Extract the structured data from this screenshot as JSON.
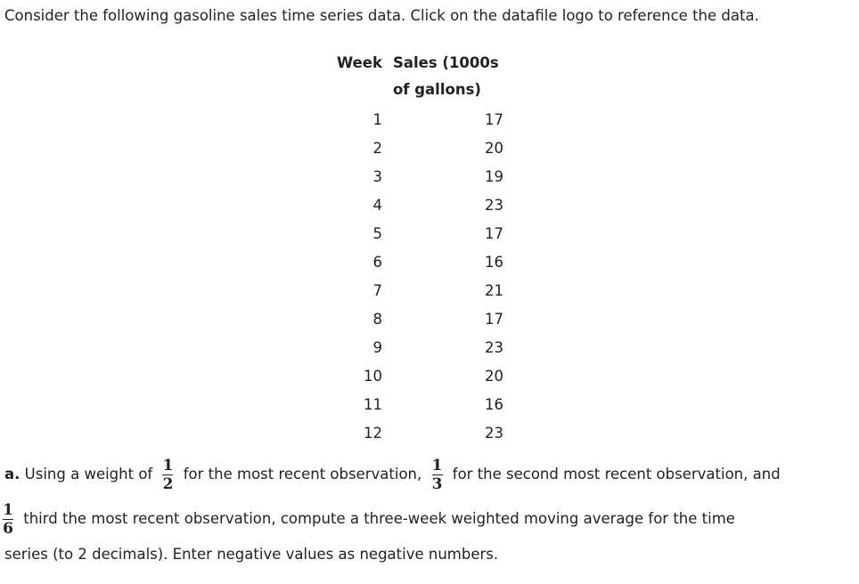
{
  "intro": "Consider the following gasoline sales time series data. Click on the datafile logo to reference the data.",
  "table": {
    "headers": [
      "Week",
      "Sales (1000s of gallons)"
    ],
    "rows": [
      [
        1,
        17
      ],
      [
        2,
        20
      ],
      [
        3,
        19
      ],
      [
        4,
        23
      ],
      [
        5,
        17
      ],
      [
        6,
        16
      ],
      [
        7,
        21
      ],
      [
        8,
        17
      ],
      [
        9,
        23
      ],
      [
        10,
        20
      ],
      [
        11,
        16
      ],
      [
        12,
        23
      ]
    ]
  },
  "question": {
    "label": "a.",
    "text1": "Using a weight of",
    "fraction1": {
      "numerator": "1",
      "denominator": "2"
    },
    "text2": "for the most recent observation,",
    "fraction2": {
      "numerator": "1",
      "denominator": "3"
    },
    "text3": "for the second most recent observation, and",
    "fraction3": {
      "numerator": "1",
      "denominator": "6"
    },
    "text4": "third the most recent observation, compute a three-week weighted moving average for the time",
    "text5": "series (to 2 decimals). Enter negative values as negative numbers."
  }
}
